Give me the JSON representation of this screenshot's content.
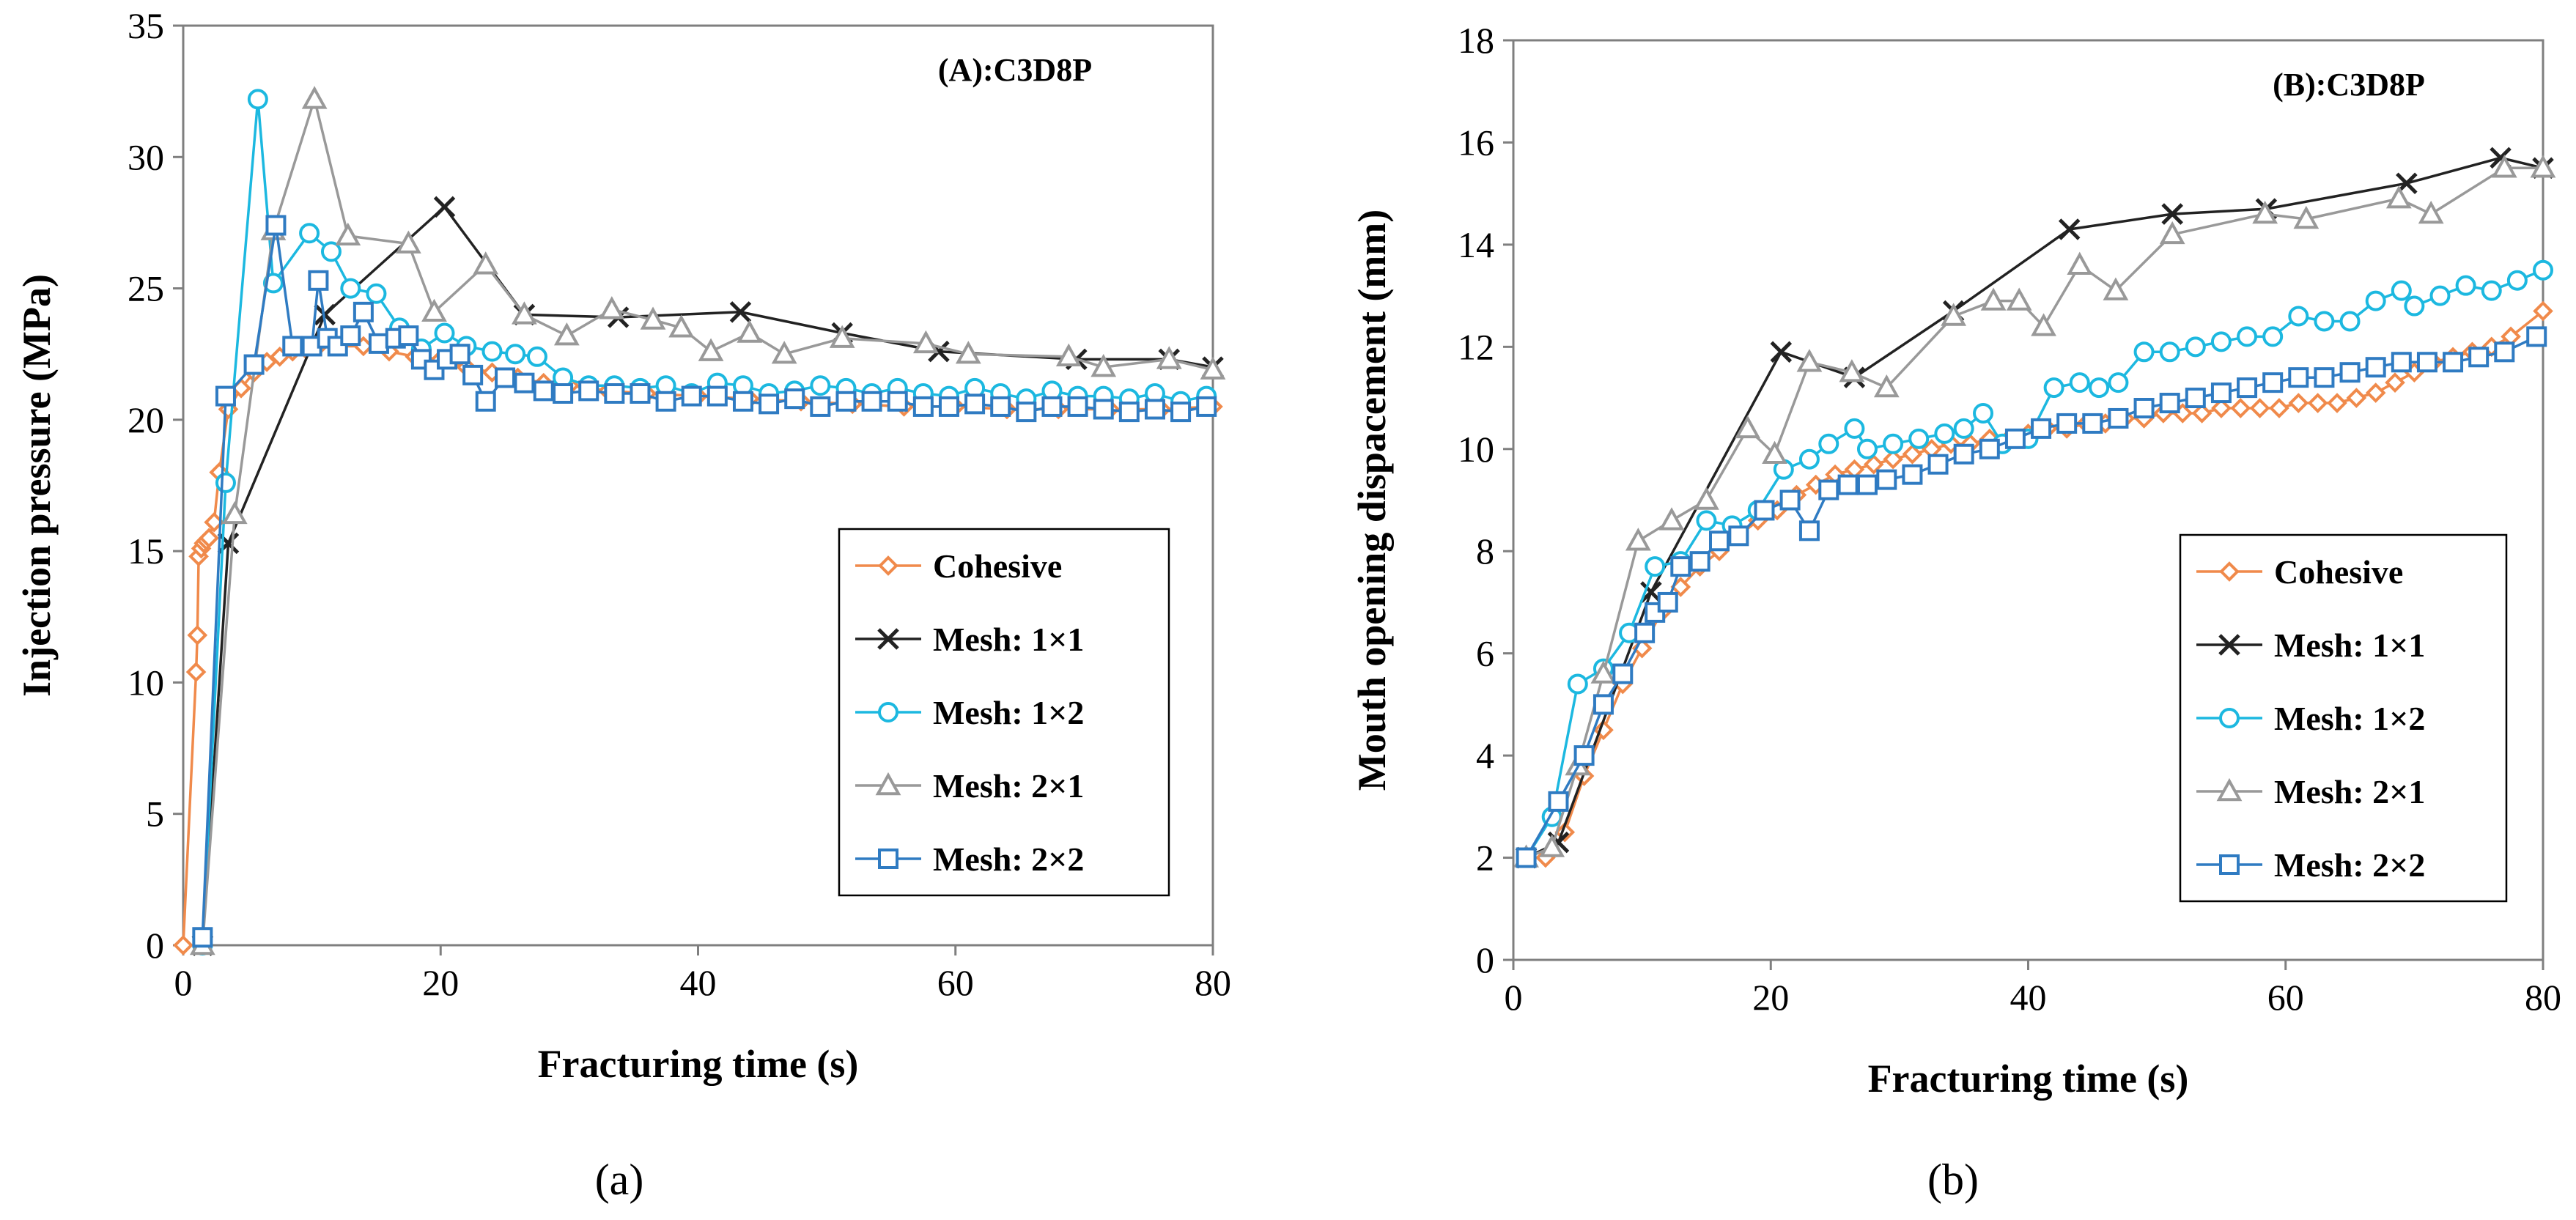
{
  "chart_data": [
    {
      "type": "line",
      "panel_label": "(A):C3D8P",
      "xlabel": "Fracturing time (s)",
      "ylabel": "Injection pressure (MPa)",
      "xlim": [
        0,
        80
      ],
      "ylim": [
        0,
        35
      ],
      "xticks": [
        0,
        20,
        40,
        60,
        80
      ],
      "yticks": [
        0,
        5,
        10,
        15,
        20,
        25,
        30,
        35
      ],
      "caption": "(a)",
      "grid": false,
      "legend_position": "bottom-right",
      "series": [
        {
          "name": "Cohesive",
          "color": "#f08a4b",
          "marker": "diamond",
          "x": [
            0,
            1,
            1.1,
            1.2,
            1.4,
            1.6,
            1.8,
            2,
            2.4,
            2.8,
            3.5,
            4.5,
            5.5,
            6.5,
            7.5,
            8.5,
            9.5,
            10.5,
            12,
            14,
            16,
            18,
            20,
            22,
            24,
            26,
            28,
            30,
            33,
            36,
            40,
            44,
            48,
            52,
            56,
            60,
            64,
            68,
            72,
            76,
            80
          ],
          "y": [
            0,
            10.4,
            11.8,
            14.8,
            15.1,
            15.3,
            15.4,
            15.5,
            16.1,
            18.0,
            20.4,
            21.2,
            21.8,
            22.2,
            22.4,
            22.6,
            22.7,
            22.8,
            22.8,
            22.8,
            22.6,
            22.4,
            22.3,
            22.0,
            21.8,
            21.6,
            21.4,
            21.3,
            21.1,
            21.0,
            20.9,
            20.8,
            20.7,
            20.6,
            20.5,
            20.5,
            20.4,
            20.4,
            20.4,
            20.4,
            20.5
          ]
        },
        {
          "name": "Mesh: 1×1",
          "color": "#222222",
          "marker": "x",
          "x": [
            1.5,
            3.5,
            11,
            20.3,
            26.5,
            33.8,
            43.3,
            51.2,
            58.7,
            69.4,
            76.6,
            80
          ],
          "y": [
            0,
            15.3,
            24.0,
            28.1,
            24.0,
            23.9,
            24.1,
            23.3,
            22.6,
            22.3,
            22.3,
            22.0
          ]
        },
        {
          "name": "Mesh: 1×2",
          "color": "#1cb8e0",
          "marker": "circle",
          "x": [
            1.5,
            3.3,
            5.8,
            7.0,
            9.8,
            11.5,
            13.0,
            15.0,
            16.8,
            18.5,
            20.3,
            22.0,
            24.0,
            25.8,
            27.5,
            29.5,
            31.5,
            33.5,
            35.5,
            37.5,
            39.5,
            41.5,
            43.5,
            45.5,
            47.5,
            49.5,
            51.5,
            53.5,
            55.5,
            57.5,
            59.5,
            61.5,
            63.5,
            65.5,
            67.5,
            69.5,
            71.5,
            73.5,
            75.5,
            77.5,
            79.5
          ],
          "y": [
            0,
            17.6,
            32.2,
            25.2,
            27.1,
            26.4,
            25.0,
            24.8,
            23.5,
            22.7,
            23.3,
            22.8,
            22.6,
            22.5,
            22.4,
            21.6,
            21.3,
            21.3,
            21.2,
            21.3,
            21.0,
            21.4,
            21.3,
            21.0,
            21.1,
            21.3,
            21.2,
            21.0,
            21.2,
            21.0,
            20.9,
            21.2,
            21.0,
            20.8,
            21.1,
            20.9,
            20.9,
            20.8,
            21.0,
            20.7,
            20.9
          ]
        },
        {
          "name": "Mesh: 2×1",
          "color": "#999999",
          "marker": "triangle",
          "x": [
            1.5,
            4,
            7,
            10.2,
            12.8,
            17.5,
            19.5,
            23.5,
            26.5,
            29.8,
            33.3,
            36.5,
            38.7,
            41.0,
            44.0,
            46.7,
            51.2,
            57.7,
            61.0,
            68.8,
            71.5,
            76.6,
            80
          ],
          "y": [
            0,
            16.4,
            27.2,
            32.2,
            27.0,
            26.7,
            24.1,
            25.9,
            24.0,
            23.2,
            24.2,
            23.8,
            23.5,
            22.6,
            23.3,
            22.5,
            23.1,
            22.9,
            22.5,
            22.4,
            22.0,
            22.3,
            21.9
          ]
        },
        {
          "name": "Mesh: 2×2",
          "color": "#2f7bc2",
          "marker": "square",
          "x": [
            1.5,
            3.3,
            5.5,
            7.2,
            8.5,
            10.0,
            10.5,
            11.2,
            12.0,
            13.0,
            14.0,
            15.2,
            16.5,
            17.5,
            18.5,
            19.5,
            20.5,
            21.5,
            22.5,
            23.5,
            25.0,
            26.5,
            28.0,
            29.5,
            31.5,
            33.5,
            35.5,
            37.5,
            39.5,
            41.5,
            43.5,
            45.5,
            47.5,
            49.5,
            51.5,
            53.5,
            55.5,
            57.5,
            59.5,
            61.5,
            63.5,
            65.5,
            67.5,
            69.5,
            71.5,
            73.5,
            75.5,
            77.5,
            79.5
          ],
          "y": [
            0.3,
            20.9,
            22.1,
            27.4,
            22.8,
            22.8,
            25.3,
            23.1,
            22.8,
            23.2,
            24.1,
            22.9,
            23.1,
            23.2,
            22.3,
            21.9,
            22.3,
            22.5,
            21.7,
            20.7,
            21.6,
            21.4,
            21.1,
            21.0,
            21.1,
            21.0,
            21.0,
            20.7,
            20.9,
            20.9,
            20.7,
            20.6,
            20.8,
            20.5,
            20.7,
            20.7,
            20.7,
            20.5,
            20.5,
            20.6,
            20.5,
            20.3,
            20.5,
            20.5,
            20.4,
            20.3,
            20.4,
            20.3,
            20.5
          ]
        }
      ]
    },
    {
      "type": "line",
      "panel_label": "(B):C3D8P",
      "xlabel": "Fracturing time (s)",
      "ylabel": "Mouth opening dispacement (mm)",
      "xlim": [
        0,
        80
      ],
      "ylim": [
        0,
        18
      ],
      "xticks": [
        0,
        20,
        40,
        60,
        80
      ],
      "yticks": [
        0,
        2,
        4,
        6,
        8,
        10,
        12,
        14,
        16,
        18
      ],
      "caption": "(b)",
      "grid": false,
      "legend_position": "bottom-right",
      "series": [
        {
          "name": "Cohesive",
          "color": "#f08a4b",
          "marker": "diamond",
          "x": [
            1,
            2.5,
            4,
            5.5,
            7,
            8.5,
            10,
            11.5,
            13,
            14.5,
            16,
            17.5,
            19,
            20.5,
            22,
            23.5,
            25,
            26.5,
            28,
            29.5,
            31,
            32.5,
            34,
            35.5,
            37,
            38.5,
            40,
            41.5,
            43,
            44.5,
            46,
            47.5,
            49,
            50.5,
            52,
            53.5,
            55,
            56.5,
            58,
            59.5,
            61,
            62.5,
            64,
            65.5,
            67,
            68.5,
            70,
            71.5,
            73,
            74.5,
            76,
            77.5,
            80
          ],
          "y": [
            2.0,
            2.0,
            2.5,
            3.6,
            4.5,
            5.4,
            6.1,
            6.8,
            7.3,
            7.7,
            8.0,
            8.3,
            8.6,
            8.8,
            9.1,
            9.3,
            9.5,
            9.6,
            9.7,
            9.8,
            9.9,
            10.0,
            10.1,
            10.1,
            10.2,
            10.2,
            10.3,
            10.4,
            10.4,
            10.5,
            10.5,
            10.6,
            10.6,
            10.7,
            10.7,
            10.7,
            10.8,
            10.8,
            10.8,
            10.8,
            10.9,
            10.9,
            10.9,
            11.0,
            11.1,
            11.3,
            11.5,
            11.7,
            11.8,
            11.9,
            12.0,
            12.2,
            12.7
          ]
        },
        {
          "name": "Mesh: 1×1",
          "color": "#222222",
          "marker": "x",
          "x": [
            1,
            3.5,
            10.7,
            20.8,
            26.5,
            34.2,
            43.2,
            51.2,
            58.5,
            69.4,
            76.7,
            80
          ],
          "y": [
            2.0,
            2.3,
            7.2,
            11.9,
            11.4,
            12.7,
            14.3,
            14.6,
            14.7,
            15.2,
            15.7,
            15.5
          ]
        },
        {
          "name": "Mesh: 1×2",
          "color": "#1cb8e0",
          "marker": "circle",
          "x": [
            1,
            3.0,
            5.0,
            7.0,
            9.0,
            11.0,
            13.0,
            15.0,
            17.0,
            19.0,
            21.0,
            23.0,
            24.5,
            26.5,
            27.5,
            29.5,
            31.5,
            33.5,
            35.0,
            36.5,
            38.0,
            40.0,
            42.0,
            44.0,
            45.5,
            47.0,
            49.0,
            51.0,
            53.0,
            55.0,
            57.0,
            59.0,
            61.0,
            63.0,
            65.0,
            67.0,
            69.0,
            70.0,
            72.0,
            74.0,
            76.0,
            78.0,
            80.0
          ],
          "y": [
            2.0,
            2.8,
            5.4,
            5.7,
            6.4,
            7.7,
            7.8,
            8.6,
            8.5,
            8.8,
            9.6,
            9.8,
            10.1,
            10.4,
            10.0,
            10.1,
            10.2,
            10.3,
            10.4,
            10.7,
            10.1,
            10.2,
            11.2,
            11.3,
            11.2,
            11.3,
            11.9,
            11.9,
            12.0,
            12.1,
            12.2,
            12.2,
            12.6,
            12.5,
            12.5,
            12.9,
            13.1,
            12.8,
            13.0,
            13.2,
            13.1,
            13.3,
            13.5
          ]
        },
        {
          "name": "Mesh: 2×1",
          "color": "#999999",
          "marker": "triangle",
          "x": [
            1,
            3,
            5,
            7,
            9.7,
            12.3,
            15.0,
            18.2,
            20.3,
            23.0,
            26.3,
            29.0,
            34.2,
            37.3,
            39.3,
            41.2,
            44.0,
            46.8,
            51.2,
            58.4,
            61.6,
            68.8,
            71.3,
            77.0,
            80.0
          ],
          "y": [
            2.0,
            2.2,
            3.8,
            5.6,
            8.2,
            8.6,
            9.0,
            10.4,
            9.9,
            11.7,
            11.5,
            11.2,
            12.6,
            12.9,
            12.9,
            12.4,
            13.6,
            13.1,
            14.2,
            14.6,
            14.5,
            14.9,
            14.6,
            15.5,
            15.5
          ]
        },
        {
          "name": "Mesh: 2×2",
          "color": "#2f7bc2",
          "marker": "square",
          "x": [
            1,
            3.5,
            5.5,
            7.0,
            8.5,
            10.2,
            11.0,
            12.0,
            13.0,
            14.5,
            16.0,
            17.5,
            19.5,
            21.5,
            23.0,
            24.5,
            26.0,
            27.5,
            29.0,
            31.0,
            33.0,
            35.0,
            37.0,
            39.0,
            41.0,
            43.0,
            45.0,
            47.0,
            49.0,
            51.0,
            53.0,
            55.0,
            57.0,
            59.0,
            61.0,
            63.0,
            65.0,
            67.0,
            69.0,
            71.0,
            73.0,
            75.0,
            77.0,
            79.5
          ],
          "y": [
            2.0,
            3.1,
            4.0,
            5.0,
            5.6,
            6.4,
            6.8,
            7.0,
            7.7,
            7.8,
            8.2,
            8.3,
            8.8,
            9.0,
            8.4,
            9.2,
            9.3,
            9.3,
            9.4,
            9.5,
            9.7,
            9.9,
            10.0,
            10.2,
            10.4,
            10.5,
            10.5,
            10.6,
            10.8,
            10.9,
            11.0,
            11.1,
            11.2,
            11.3,
            11.4,
            11.4,
            11.5,
            11.6,
            11.7,
            11.7,
            11.7,
            11.8,
            11.9,
            12.2
          ]
        }
      ]
    }
  ]
}
